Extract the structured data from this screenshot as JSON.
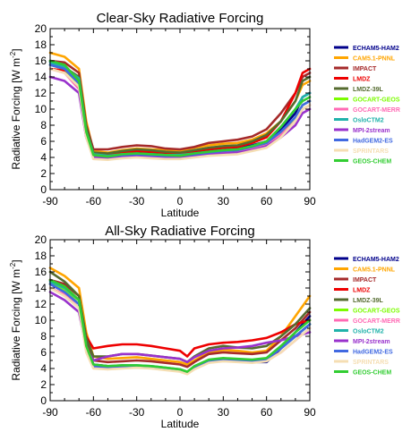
{
  "chart_data": [
    {
      "type": "line",
      "title": "Clear-Sky Radiative Forcing",
      "xlabel": "Latitude",
      "ylabel": "Radiative Forcing [W m",
      "ylabel_sup": "-2",
      "ylabel_close": "]",
      "xlim": [
        -90,
        90
      ],
      "ylim": [
        0,
        20
      ],
      "xticks": [
        -90,
        -60,
        -30,
        0,
        30,
        60,
        90
      ],
      "yticks": [
        0,
        2,
        4,
        6,
        8,
        10,
        12,
        14,
        16,
        18,
        20
      ],
      "legend_position": "right",
      "x": [
        -90,
        -80,
        -70,
        -65,
        -60,
        -50,
        -40,
        -30,
        -20,
        -10,
        0,
        10,
        20,
        30,
        40,
        50,
        60,
        70,
        80,
        85,
        90
      ],
      "series": [
        {
          "name": "ECHAM5-HAM2",
          "color": "#00008b",
          "values": [
            15.5,
            15.0,
            13.5,
            7.5,
            4.5,
            4.2,
            4.5,
            4.6,
            4.5,
            4.4,
            4.3,
            4.6,
            4.8,
            5.0,
            5.1,
            5.5,
            6.0,
            7.5,
            9.5,
            11.5,
            12.0
          ]
        },
        {
          "name": "CAM5.1-PNNL",
          "color": "#ffa500",
          "values": [
            17.0,
            16.5,
            15.0,
            8.5,
            4.8,
            4.6,
            4.9,
            5.1,
            5.0,
            4.9,
            4.8,
            5.2,
            5.5,
            5.7,
            5.8,
            6.2,
            7.0,
            8.5,
            11.0,
            13.0,
            13.5
          ]
        },
        {
          "name": "IMPACT",
          "color": "#a52a2a",
          "values": [
            16.0,
            15.8,
            14.5,
            8.0,
            5.0,
            5.0,
            5.3,
            5.5,
            5.4,
            5.1,
            5.0,
            5.3,
            5.8,
            6.0,
            6.2,
            6.6,
            7.5,
            9.5,
            12.0,
            14.0,
            14.5
          ]
        },
        {
          "name": "LMDZ",
          "color": "#ee0000",
          "values": [
            15.0,
            14.8,
            13.5,
            7.5,
            4.4,
            4.3,
            4.6,
            4.8,
            4.7,
            4.6,
            4.5,
            4.8,
            5.0,
            5.2,
            5.3,
            5.8,
            6.5,
            8.5,
            12.0,
            14.5,
            15.0
          ]
        },
        {
          "name": "LMDZ-39L",
          "color": "#556b2f",
          "values": [
            16.0,
            15.2,
            14.0,
            7.8,
            4.6,
            4.5,
            4.8,
            5.0,
            4.9,
            4.7,
            4.6,
            4.9,
            5.2,
            5.4,
            5.5,
            6.0,
            6.8,
            8.5,
            11.0,
            13.5,
            14.0
          ]
        },
        {
          "name": "GOCART-GEOS",
          "color": "#7cfc00",
          "values": [
            15.5,
            15.0,
            13.0,
            7.0,
            4.2,
            4.0,
            4.3,
            4.4,
            4.3,
            4.2,
            4.1,
            4.4,
            4.6,
            4.8,
            4.9,
            5.2,
            5.7,
            7.0,
            9.0,
            10.5,
            11.0
          ]
        },
        {
          "name": "GOCART-MERR",
          "color": "#ff69b4",
          "values": [
            15.0,
            14.5,
            12.5,
            6.5,
            4.0,
            3.9,
            4.1,
            4.2,
            4.1,
            4.0,
            4.0,
            4.2,
            4.4,
            4.6,
            4.7,
            5.0,
            5.5,
            6.8,
            8.5,
            10.0,
            10.5
          ]
        },
        {
          "name": "OsloCTM2",
          "color": "#20b2aa",
          "values": [
            15.8,
            15.2,
            13.8,
            7.2,
            4.4,
            4.2,
            4.4,
            4.5,
            4.4,
            4.3,
            4.3,
            4.5,
            4.7,
            4.9,
            5.0,
            5.4,
            6.0,
            7.8,
            10.0,
            11.5,
            12.0
          ]
        },
        {
          "name": "MPI-2stream",
          "color": "#9932cc",
          "values": [
            14.0,
            13.5,
            12.0,
            6.5,
            4.0,
            3.9,
            4.1,
            4.2,
            4.1,
            4.0,
            4.0,
            4.2,
            4.4,
            4.5,
            4.6,
            4.9,
            5.4,
            6.5,
            8.0,
            9.5,
            10.0
          ]
        },
        {
          "name": "HadGEM2-ES",
          "color": "#4169e1",
          "values": [
            15.5,
            15.0,
            13.2,
            7.0,
            4.3,
            4.1,
            4.3,
            4.4,
            4.3,
            4.2,
            4.2,
            4.4,
            4.6,
            4.8,
            4.9,
            5.3,
            5.8,
            7.2,
            9.0,
            10.5,
            11.0
          ]
        },
        {
          "name": "SPRINTARS",
          "color": "#f5deb3",
          "values": [
            15.0,
            14.5,
            12.8,
            6.5,
            3.8,
            3.7,
            3.9,
            4.0,
            3.9,
            3.8,
            3.8,
            4.0,
            4.2,
            4.3,
            4.4,
            4.8,
            5.2,
            6.5,
            8.5,
            10.0,
            10.5
          ]
        },
        {
          "name": "GEOS-CHEM",
          "color": "#32cd32",
          "values": [
            16.0,
            15.5,
            13.5,
            7.2,
            4.3,
            4.1,
            4.4,
            4.5,
            4.4,
            4.3,
            4.2,
            4.5,
            4.7,
            4.9,
            5.0,
            5.4,
            6.0,
            7.8,
            10.0,
            11.0,
            11.5
          ]
        }
      ]
    },
    {
      "type": "line",
      "title": "All-Sky Radiative Forcing",
      "xlabel": "Latitude",
      "ylabel": "Radiative Forcing [W m",
      "ylabel_sup": "-2",
      "ylabel_close": "]",
      "xlim": [
        -90,
        90
      ],
      "ylim": [
        0,
        20
      ],
      "xticks": [
        -90,
        -60,
        -30,
        0,
        30,
        60,
        90
      ],
      "yticks": [
        0,
        2,
        4,
        6,
        8,
        10,
        12,
        14,
        16,
        18,
        20
      ],
      "legend_position": "right",
      "x": [
        -90,
        -80,
        -70,
        -65,
        -60,
        -50,
        -40,
        -30,
        -20,
        -10,
        0,
        5,
        10,
        20,
        30,
        40,
        50,
        60,
        70,
        80,
        90
      ],
      "series": [
        {
          "name": "ECHAM5-HAM2",
          "color": "#00008b",
          "values": [
            14.5,
            13.5,
            12.0,
            7.0,
            4.5,
            4.3,
            4.2,
            4.3,
            4.2,
            4.0,
            3.8,
            3.5,
            4.0,
            4.8,
            5.0,
            4.9,
            4.8,
            4.8,
            6.5,
            8.5,
            10.5
          ]
        },
        {
          "name": "CAM5.1-PNNL",
          "color": "#ffa500",
          "values": [
            16.5,
            15.5,
            14.0,
            8.5,
            5.5,
            5.2,
            5.3,
            5.4,
            5.2,
            5.0,
            4.8,
            4.5,
            5.0,
            6.0,
            6.3,
            6.2,
            6.0,
            6.2,
            8.0,
            10.5,
            13.0
          ]
        },
        {
          "name": "IMPACT",
          "color": "#a52a2a",
          "values": [
            15.0,
            14.5,
            13.0,
            7.5,
            5.0,
            4.8,
            4.9,
            5.0,
            4.9,
            4.7,
            4.5,
            4.2,
            4.8,
            5.8,
            6.0,
            5.9,
            5.8,
            6.0,
            7.5,
            9.0,
            11.0
          ]
        },
        {
          "name": "LMDZ",
          "color": "#ee0000",
          "values": [
            15.0,
            14.0,
            12.5,
            8.0,
            6.5,
            6.8,
            7.0,
            7.0,
            6.8,
            6.5,
            6.2,
            5.5,
            6.5,
            7.0,
            7.2,
            7.3,
            7.5,
            7.8,
            8.5,
            9.5,
            10.0
          ]
        },
        {
          "name": "LMDZ-39L",
          "color": "#556b2f",
          "values": [
            16.0,
            14.8,
            13.0,
            7.8,
            5.5,
            5.5,
            5.8,
            5.8,
            5.6,
            5.4,
            5.2,
            4.8,
            5.5,
            6.5,
            6.8,
            6.6,
            6.5,
            6.8,
            8.0,
            9.5,
            11.5
          ]
        },
        {
          "name": "GOCART-GEOS",
          "color": "#7cfc00",
          "values": [
            14.5,
            13.8,
            12.0,
            6.5,
            4.3,
            4.2,
            4.3,
            4.3,
            4.2,
            4.0,
            3.8,
            3.5,
            4.2,
            5.0,
            5.2,
            5.1,
            5.0,
            5.2,
            6.5,
            8.0,
            9.5
          ]
        },
        {
          "name": "GOCART-MERR",
          "color": "#ff69b4",
          "values": [
            14.0,
            13.2,
            11.5,
            6.2,
            4.2,
            4.0,
            4.1,
            4.2,
            4.1,
            3.9,
            3.7,
            3.4,
            4.0,
            4.8,
            5.0,
            4.9,
            4.8,
            5.0,
            6.0,
            7.5,
            9.0
          ]
        },
        {
          "name": "OsloCTM2",
          "color": "#20b2aa",
          "values": [
            14.8,
            14.0,
            12.5,
            6.8,
            4.4,
            4.3,
            4.4,
            4.4,
            4.3,
            4.1,
            3.9,
            3.6,
            4.2,
            5.0,
            5.2,
            5.1,
            5.0,
            5.2,
            6.5,
            8.0,
            9.5
          ]
        },
        {
          "name": "MPI-2stream",
          "color": "#9932cc",
          "values": [
            13.5,
            12.5,
            11.0,
            6.5,
            5.0,
            5.5,
            5.8,
            5.8,
            5.6,
            5.4,
            5.2,
            4.8,
            5.4,
            6.2,
            6.5,
            6.6,
            6.8,
            7.2,
            7.5,
            8.0,
            8.5
          ]
        },
        {
          "name": "HadGEM2-ES",
          "color": "#4169e1",
          "values": [
            14.5,
            13.5,
            12.0,
            6.8,
            4.3,
            4.2,
            4.3,
            4.3,
            4.2,
            4.0,
            3.8,
            3.5,
            4.1,
            4.9,
            5.1,
            5.0,
            4.9,
            5.1,
            6.5,
            8.0,
            9.5
          ]
        },
        {
          "name": "SPRINTARS",
          "color": "#f5deb3",
          "values": [
            14.0,
            13.0,
            11.5,
            6.0,
            4.0,
            3.9,
            4.0,
            4.1,
            4.0,
            3.8,
            3.6,
            3.3,
            3.9,
            4.7,
            4.9,
            4.8,
            4.7,
            4.9,
            6.0,
            7.5,
            9.0
          ]
        },
        {
          "name": "GEOS-CHEM",
          "color": "#32cd32",
          "values": [
            15.0,
            14.2,
            12.5,
            6.8,
            4.5,
            4.3,
            4.4,
            4.4,
            4.3,
            4.1,
            3.9,
            3.6,
            4.3,
            5.1,
            5.3,
            5.2,
            5.1,
            5.3,
            6.8,
            8.5,
            10.0
          ]
        }
      ]
    }
  ]
}
